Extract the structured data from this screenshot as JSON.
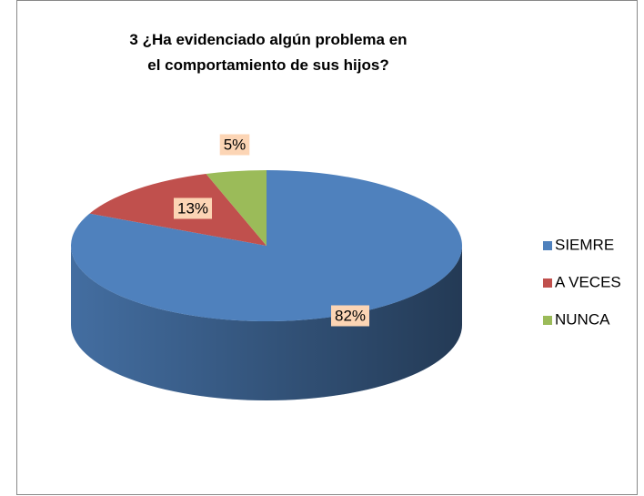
{
  "chart_data": {
    "type": "pie",
    "title": "3 ¿Ha evidenciado algún problema en el comportamiento de sus hijos?",
    "categories": [
      "SIEMRE",
      "A VECES",
      "NUNCA"
    ],
    "values": [
      82,
      13,
      5
    ],
    "value_labels": [
      "82%",
      "13%",
      "5%"
    ],
    "colors": [
      "#4f81bd",
      "#c0504d",
      "#9bbb59"
    ],
    "legend": "right"
  }
}
